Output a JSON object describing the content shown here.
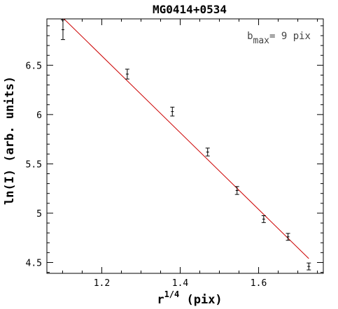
{
  "chart_data": {
    "type": "scatter",
    "title": "MG0414+0534",
    "xlabel_base": "r",
    "xlabel_sup": "1/4",
    "xlabel_rest": " (pix)",
    "ylabel": "ln(I)  (arb. units)",
    "xlim": [
      1.06,
      1.765
    ],
    "ylim": [
      4.39,
      6.97
    ],
    "xticks": [
      1.2,
      1.4,
      1.6
    ],
    "xtick_labels": [
      "1.2",
      "1.4",
      "1.6"
    ],
    "yticks": [
      4.5,
      5,
      5.5,
      6,
      6.5
    ],
    "ytick_labels": [
      "4.5",
      "5",
      "5.5",
      "6",
      "6.5"
    ],
    "annotation": {
      "base": "b",
      "sub": "max",
      "rest": "= 9 pix"
    },
    "points": [
      {
        "x": 1.101,
        "y": 6.86,
        "err": 0.1
      },
      {
        "x": 1.265,
        "y": 6.41,
        "err": 0.05
      },
      {
        "x": 1.38,
        "y": 6.03,
        "err": 0.045
      },
      {
        "x": 1.47,
        "y": 5.62,
        "err": 0.04
      },
      {
        "x": 1.545,
        "y": 5.23,
        "err": 0.04
      },
      {
        "x": 1.613,
        "y": 4.94,
        "err": 0.035
      },
      {
        "x": 1.675,
        "y": 4.76,
        "err": 0.035
      },
      {
        "x": 1.728,
        "y": 4.46,
        "err": 0.035
      }
    ],
    "fit_line": {
      "color": "#cc0000",
      "x": [
        1.101,
        1.728
      ],
      "y": [
        6.98,
        4.54
      ]
    },
    "grid": false,
    "colors": {
      "points": "#000000",
      "axes": "#000000",
      "fit": "#cc0000"
    }
  }
}
